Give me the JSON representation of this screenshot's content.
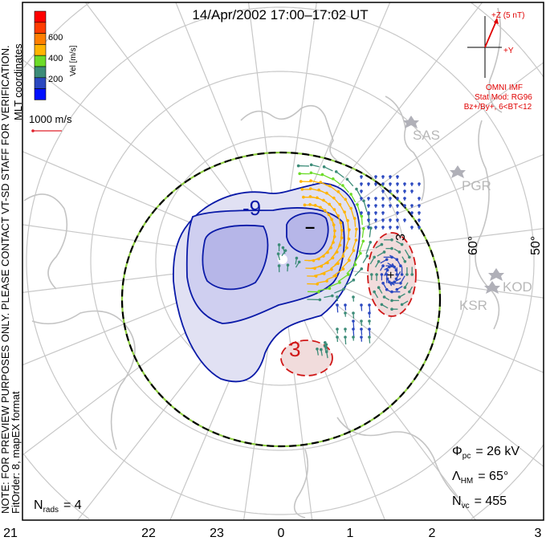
{
  "title": "14/Apr/2002 17:00–17:02 UT",
  "colorbar": {
    "label": "Vel [m/s]",
    "ticks": [
      "600",
      "400",
      "200"
    ],
    "colors": [
      "#ff0000",
      "#ff3c00",
      "#ff7f00",
      "#ffb400",
      "#6cdc28",
      "#3c8c78",
      "#2a48c0",
      "#0010ff"
    ]
  },
  "coordinates_label": "MLT coordinates",
  "scale_vector": {
    "label": "1000 m/s",
    "color": "#e0202a"
  },
  "note_line1": "NOTE: FOR PREVIEW PURPOSES ONLY. PLEASE CONTACT VT-SD STAFF FOR VERIFICATION.",
  "note_line2": "FitOrder: 8, mapEX format",
  "imf": {
    "z_label": "+Z (5 nT)",
    "y_label": "+Y",
    "source": "OMNI IMF",
    "stat_mod": "Stat Mod: RG96",
    "condition": "Bz+/By+, 6<BT<12",
    "color": "#e00000"
  },
  "radars": [
    "SAS",
    "PGR",
    "KOD",
    "KSR"
  ],
  "latitude_labels": [
    "60°",
    "50°"
  ],
  "contour_labels": {
    "negative": "-9",
    "negative_inner": "–",
    "positive": "3",
    "positive_dawn": "3"
  },
  "mlt_ticks": [
    "21",
    "22",
    "23",
    "0",
    "1",
    "2",
    "3"
  ],
  "stats": {
    "phi_pc": {
      "symbol": "Φ",
      "sub": "pc",
      "value": "= 26 kV"
    },
    "lambda_hm": {
      "symbol": "Λ",
      "sub": "HM",
      "value": "= 65°"
    },
    "n_vc": {
      "symbol": "N",
      "sub": "vc",
      "value": "= 455"
    },
    "n_rads": {
      "symbol": "N",
      "sub": "rads",
      "value": "= 4"
    }
  }
}
